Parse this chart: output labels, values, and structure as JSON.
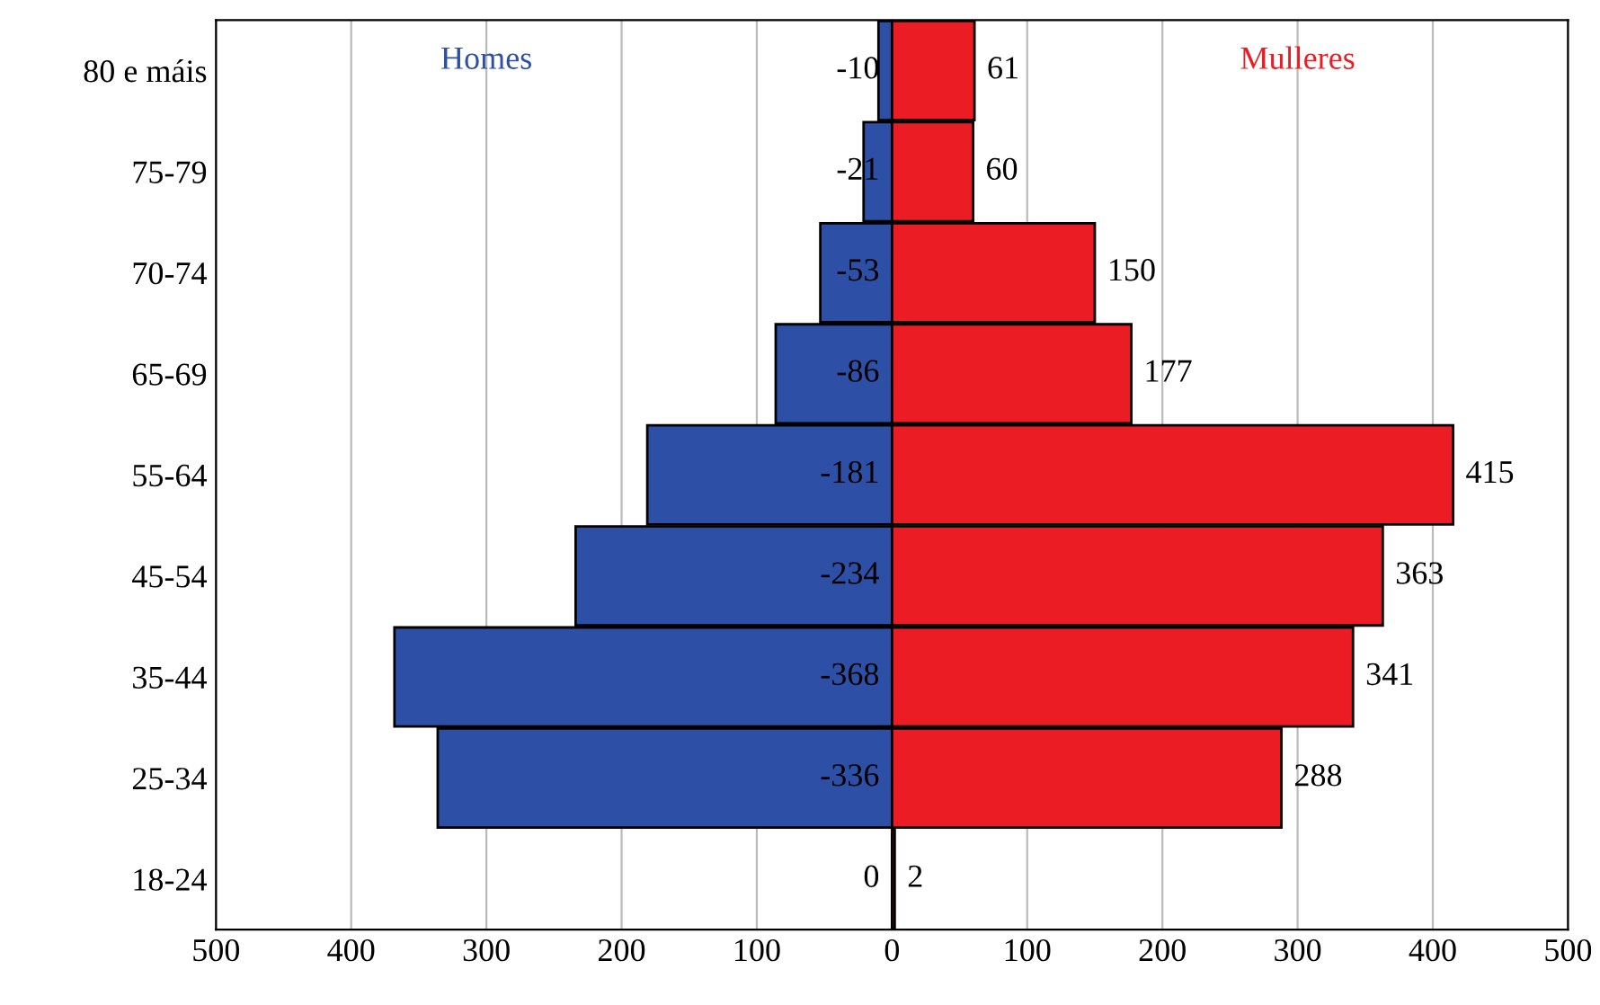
{
  "chart_data": {
    "type": "bar",
    "orientation": "horizontal",
    "categories": [
      "80 e máis",
      "75-79",
      "70-74",
      "65-69",
      "55-64",
      "45-54",
      "35-44",
      "25-34",
      "18-24"
    ],
    "series": [
      {
        "name": "Homes",
        "color": "#2e4fa6",
        "values": [
          -10,
          -21,
          -53,
          -86,
          -181,
          -234,
          -368,
          -336,
          0
        ]
      },
      {
        "name": "Mulleres",
        "color": "#ec1c24",
        "values": [
          61,
          60,
          150,
          177,
          415,
          363,
          341,
          288,
          2
        ]
      }
    ],
    "xlim": [
      -500,
      500
    ],
    "xticks": [
      {
        "value": -500,
        "label": "500"
      },
      {
        "value": -400,
        "label": "400"
      },
      {
        "value": -300,
        "label": "300"
      },
      {
        "value": -200,
        "label": "200"
      },
      {
        "value": -100,
        "label": "100"
      },
      0,
      100,
      200,
      300,
      400,
      500
    ],
    "grid": "x",
    "stacked": true,
    "legend": false,
    "data_labels": true
  }
}
